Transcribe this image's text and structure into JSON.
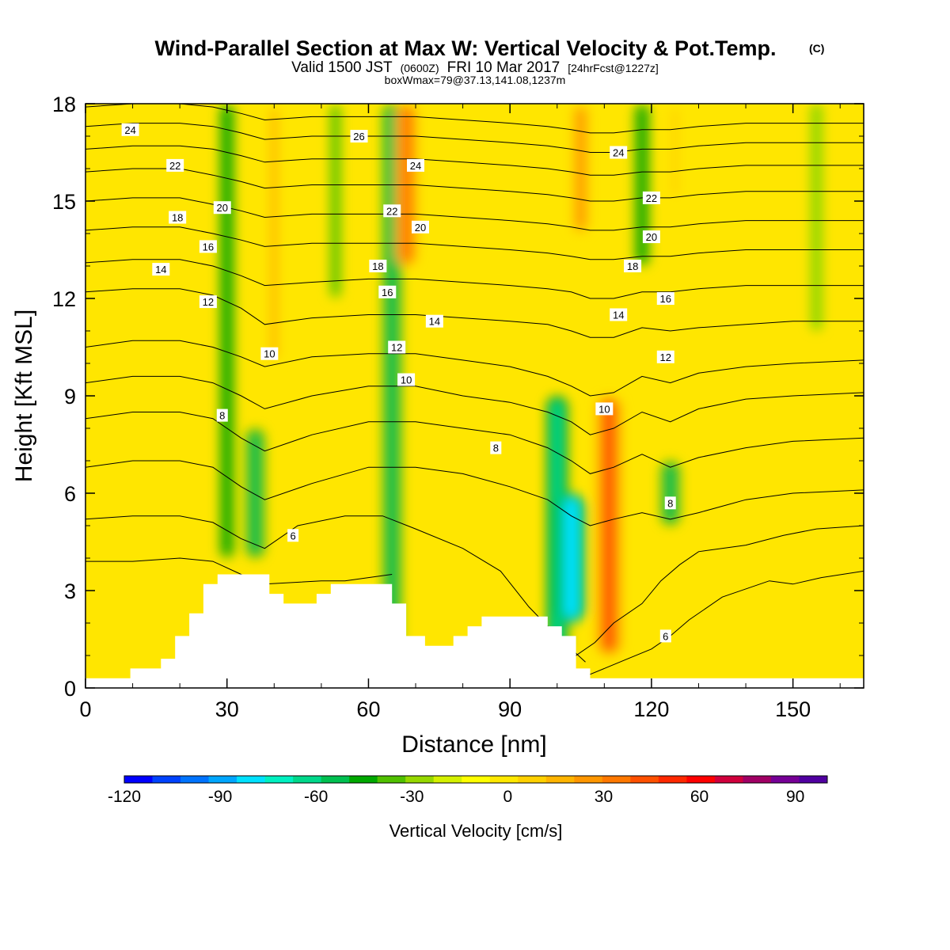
{
  "title": {
    "main": "Wind-Parallel Section at Max W: Vertical Velocity & Pot.Temp.",
    "main_suffix": "(C)",
    "valid_prefix": "Valid 1500 JST",
    "valid_utc": "(0600Z)",
    "valid_date": "FRI 10 Mar 2017",
    "forecast": "[24hrFcst@1227z]",
    "box_info": "boxWmax=79@37.13,141.08,1237m"
  },
  "chart_data": {
    "type": "heatmap",
    "xlabel": "Distance [nm]",
    "ylabel": "Height [Kft MSL]",
    "xlim": [
      0,
      165
    ],
    "ylim": [
      0,
      18
    ],
    "x_ticks": [
      0,
      30,
      60,
      90,
      120,
      150
    ],
    "y_ticks": [
      0,
      3,
      6,
      9,
      12,
      15,
      18
    ],
    "colorbar": {
      "title": "Vertical Velocity [cm/s]",
      "range": [
        -120,
        100
      ],
      "step": 10,
      "tick_values": [
        -120,
        -90,
        -60,
        -30,
        0,
        30,
        60,
        90
      ],
      "colors": [
        "#0000ff",
        "#0042ff",
        "#0073ff",
        "#00a6ff",
        "#00e1ff",
        "#00f0c0",
        "#00d88a",
        "#00c050",
        "#00a800",
        "#50c000",
        "#96d800",
        "#d4f000",
        "#ffff00",
        "#ffe800",
        "#ffd000",
        "#ffb400",
        "#ff9600",
        "#ff7800",
        "#ff5000",
        "#ff2800",
        "#ff0000",
        "#d0003c",
        "#a00064",
        "#760096",
        "#5000a0"
      ]
    },
    "velocity_features": [
      {
        "kind": "downdraft",
        "x": 30,
        "y_bottom": 4,
        "y_top": 18,
        "value": -40
      },
      {
        "kind": "downdraft",
        "x": 36,
        "y_bottom": 4,
        "y_top": 8,
        "value": -50
      },
      {
        "kind": "updraft",
        "x": 40,
        "y_bottom": 10,
        "y_top": 18,
        "value": 35
      },
      {
        "kind": "downdraft",
        "x": 53,
        "y_bottom": 12,
        "y_top": 18,
        "value": -30
      },
      {
        "kind": "downdraft",
        "x": 65,
        "y_bottom": 1,
        "y_top": 18,
        "value": -50
      },
      {
        "kind": "updraft",
        "x": 68,
        "y_bottom": 13,
        "y_top": 18,
        "value": 55
      },
      {
        "kind": "downdraft",
        "x": 100,
        "y_bottom": 1,
        "y_top": 9,
        "value": -55
      },
      {
        "kind": "downdraft",
        "x": 103,
        "y_bottom": 2,
        "y_top": 6,
        "value": -75
      },
      {
        "kind": "updraft",
        "x": 105,
        "y_bottom": 14,
        "y_top": 18,
        "value": 45
      },
      {
        "kind": "updraft",
        "x": 111,
        "y_bottom": 1,
        "y_top": 9,
        "value": 65
      },
      {
        "kind": "downdraft",
        "x": 118,
        "y_bottom": 13,
        "y_top": 18,
        "value": -40
      },
      {
        "kind": "downdraft",
        "x": 124,
        "y_bottom": 5,
        "y_top": 7,
        "value": -50
      },
      {
        "kind": "updraft",
        "x": 125,
        "y_bottom": 15,
        "y_top": 18,
        "value": 25
      },
      {
        "kind": "downdraft",
        "x": 155,
        "y_bottom": 11,
        "y_top": 18,
        "value": -20
      }
    ],
    "terrain": {
      "x": [
        0,
        9.5,
        9.5,
        16,
        16,
        19,
        19,
        22,
        22,
        25,
        25,
        28,
        28,
        39,
        39,
        42,
        42,
        49,
        49,
        52,
        52,
        65,
        65,
        68,
        68,
        72,
        72,
        78,
        78,
        81,
        81,
        84,
        84,
        98,
        98,
        101,
        101,
        104,
        104,
        107,
        107,
        165
      ],
      "y": [
        0.3,
        0.3,
        0.6,
        0.6,
        0.9,
        0.9,
        1.6,
        1.6,
        2.3,
        2.3,
        3.2,
        3.2,
        3.5,
        3.5,
        2.9,
        2.9,
        2.6,
        2.6,
        2.9,
        2.9,
        3.2,
        3.2,
        2.6,
        2.6,
        1.6,
        1.6,
        1.3,
        1.3,
        1.6,
        1.6,
        1.9,
        1.9,
        2.2,
        2.2,
        1.9,
        1.9,
        1.6,
        1.6,
        0.6,
        0.6,
        0.3,
        0.3
      ]
    },
    "theta_contours": [
      {
        "level": 5,
        "x": [
          0,
          10,
          20,
          27,
          33,
          38,
          50,
          55,
          65
        ],
        "y": [
          3.9,
          3.9,
          4.0,
          3.9,
          3.5,
          3.2,
          3.3,
          3.3,
          3.5
        ]
      },
      {
        "level": 5,
        "x": [
          98,
          102,
          108,
          112,
          118,
          122,
          126,
          130,
          140,
          148,
          155,
          165
        ],
        "y": [
          0.5,
          0.8,
          1.4,
          2.0,
          2.6,
          3.3,
          3.8,
          4.2,
          4.4,
          4.7,
          4.9,
          5.0
        ]
      },
      {
        "level": 6,
        "x": [
          0,
          10,
          20,
          27,
          33,
          38,
          45,
          55,
          63,
          70,
          80,
          88,
          94,
          100,
          106
        ],
        "y": [
          5.2,
          5.3,
          5.3,
          5.1,
          4.6,
          4.3,
          5.0,
          5.3,
          5.3,
          4.9,
          4.3,
          3.6,
          2.5,
          1.6,
          0.8
        ]
      },
      {
        "level": 6,
        "x": [
          105,
          110,
          115,
          120,
          124,
          128,
          135,
          145,
          150,
          156,
          165
        ],
        "y": [
          0.3,
          0.6,
          0.9,
          1.2,
          1.6,
          2.1,
          2.8,
          3.3,
          3.2,
          3.4,
          3.6
        ]
      },
      {
        "level": 7,
        "x": [
          0,
          10,
          20,
          27,
          33,
          38,
          48,
          60,
          70,
          80,
          90,
          98,
          103,
          107,
          112,
          118,
          124,
          130,
          140,
          150,
          165
        ],
        "y": [
          6.8,
          7.0,
          7.0,
          6.8,
          6.2,
          5.8,
          6.3,
          6.8,
          6.8,
          6.6,
          6.2,
          5.8,
          5.3,
          5.0,
          5.2,
          5.4,
          5.2,
          5.4,
          5.8,
          6.0,
          6.1
        ]
      },
      {
        "level": 8,
        "x": [
          0,
          10,
          20,
          27,
          33,
          38,
          48,
          60,
          70,
          80,
          90,
          98,
          103,
          107,
          112,
          118,
          124,
          130,
          140,
          150,
          165
        ],
        "y": [
          8.3,
          8.5,
          8.5,
          8.3,
          7.7,
          7.3,
          7.8,
          8.2,
          8.2,
          8.0,
          7.8,
          7.4,
          7.0,
          6.6,
          6.8,
          7.2,
          6.8,
          7.1,
          7.4,
          7.6,
          7.7
        ]
      },
      {
        "level": 9,
        "x": [
          0,
          10,
          20,
          27,
          33,
          38,
          48,
          60,
          70,
          80,
          90,
          98,
          103,
          107,
          112,
          118,
          124,
          130,
          140,
          150,
          165
        ],
        "y": [
          9.4,
          9.6,
          9.6,
          9.4,
          9.0,
          8.6,
          9.0,
          9.3,
          9.3,
          9.0,
          8.8,
          8.5,
          8.2,
          7.8,
          8.0,
          8.5,
          8.2,
          8.6,
          8.9,
          9.0,
          9.1
        ]
      },
      {
        "level": 10,
        "x": [
          0,
          10,
          20,
          27,
          33,
          38,
          48,
          60,
          70,
          80,
          90,
          98,
          103,
          107,
          112,
          118,
          124,
          130,
          140,
          150,
          165
        ],
        "y": [
          10.5,
          10.7,
          10.7,
          10.5,
          10.2,
          9.9,
          10.2,
          10.3,
          10.3,
          10.1,
          9.9,
          9.6,
          9.3,
          9.0,
          9.1,
          9.6,
          9.4,
          9.7,
          9.9,
          10.0,
          10.1
        ]
      },
      {
        "level": 12,
        "x": [
          0,
          10,
          20,
          27,
          33,
          38,
          48,
          60,
          70,
          80,
          90,
          98,
          103,
          107,
          112,
          118,
          124,
          130,
          140,
          150,
          165
        ],
        "y": [
          12.2,
          12.3,
          12.3,
          12.1,
          11.7,
          11.2,
          11.4,
          11.5,
          11.5,
          11.4,
          11.3,
          11.2,
          11.0,
          10.8,
          10.8,
          11.1,
          11.0,
          11.1,
          11.2,
          11.3,
          11.3
        ]
      },
      {
        "level": 14,
        "x": [
          0,
          10,
          20,
          27,
          33,
          38,
          48,
          60,
          70,
          80,
          90,
          98,
          103,
          107,
          112,
          118,
          124,
          130,
          140,
          150,
          165
        ],
        "y": [
          13.1,
          13.2,
          13.2,
          13.0,
          12.7,
          12.4,
          12.5,
          12.6,
          12.6,
          12.5,
          12.4,
          12.3,
          12.2,
          12.0,
          12.0,
          12.2,
          12.2,
          12.3,
          12.4,
          12.4,
          12.4
        ]
      },
      {
        "level": 16,
        "x": [
          0,
          10,
          20,
          27,
          33,
          38,
          48,
          60,
          70,
          80,
          90,
          98,
          103,
          107,
          112,
          118,
          124,
          130,
          140,
          150,
          165
        ],
        "y": [
          14.1,
          14.2,
          14.2,
          14.0,
          13.8,
          13.6,
          13.7,
          13.7,
          13.7,
          13.6,
          13.5,
          13.4,
          13.3,
          13.2,
          13.2,
          13.3,
          13.3,
          13.4,
          13.5,
          13.5,
          13.5
        ]
      },
      {
        "level": 18,
        "x": [
          0,
          10,
          20,
          27,
          33,
          38,
          48,
          60,
          70,
          80,
          90,
          98,
          103,
          107,
          112,
          118,
          124,
          130,
          140,
          150,
          165
        ],
        "y": [
          15.0,
          15.1,
          15.1,
          14.9,
          14.7,
          14.5,
          14.6,
          14.6,
          14.6,
          14.5,
          14.4,
          14.3,
          14.2,
          14.1,
          14.1,
          14.2,
          14.2,
          14.3,
          14.4,
          14.4,
          14.4
        ]
      },
      {
        "level": 20,
        "x": [
          0,
          10,
          20,
          27,
          33,
          38,
          48,
          60,
          70,
          80,
          90,
          98,
          103,
          107,
          112,
          118,
          124,
          130,
          140,
          150,
          165
        ],
        "y": [
          15.9,
          16.0,
          16.0,
          15.8,
          15.6,
          15.4,
          15.5,
          15.5,
          15.5,
          15.4,
          15.3,
          15.2,
          15.1,
          15.0,
          15.0,
          15.1,
          15.1,
          15.2,
          15.3,
          15.3,
          15.3
        ]
      },
      {
        "level": 22,
        "x": [
          0,
          10,
          20,
          27,
          33,
          38,
          48,
          60,
          70,
          80,
          90,
          98,
          103,
          107,
          112,
          118,
          124,
          130,
          140,
          150,
          165
        ],
        "y": [
          16.6,
          16.7,
          16.7,
          16.6,
          16.4,
          16.2,
          16.3,
          16.3,
          16.3,
          16.2,
          16.1,
          16.0,
          15.9,
          15.8,
          15.8,
          15.9,
          15.9,
          16.0,
          16.1,
          16.1,
          16.1
        ]
      },
      {
        "level": 24,
        "x": [
          0,
          10,
          20,
          27,
          33,
          38,
          48,
          60,
          70,
          80,
          90,
          98,
          103,
          107,
          112,
          118,
          124,
          130,
          140,
          150,
          165
        ],
        "y": [
          17.3,
          17.4,
          17.4,
          17.3,
          17.1,
          16.9,
          17.0,
          17.0,
          17.0,
          16.9,
          16.8,
          16.7,
          16.6,
          16.5,
          16.5,
          16.6,
          16.6,
          16.7,
          16.8,
          16.8,
          16.8
        ]
      },
      {
        "level": 26,
        "x": [
          0,
          10,
          20,
          27,
          33,
          38,
          48,
          60,
          70,
          80,
          90,
          98,
          103,
          107,
          112,
          118,
          124,
          130,
          140,
          150,
          165
        ],
        "y": [
          17.9,
          18.0,
          18.0,
          17.9,
          17.7,
          17.5,
          17.6,
          17.6,
          17.6,
          17.5,
          17.4,
          17.3,
          17.2,
          17.1,
          17.1,
          17.2,
          17.2,
          17.3,
          17.4,
          17.4,
          17.4
        ]
      }
    ],
    "contour_labels": [
      {
        "text": "24",
        "x": 9.5,
        "y": 17.2
      },
      {
        "text": "26",
        "x": 58,
        "y": 17.0
      },
      {
        "text": "24",
        "x": 70,
        "y": 16.1
      },
      {
        "text": "24",
        "x": 113,
        "y": 16.5
      },
      {
        "text": "22",
        "x": 19,
        "y": 16.1
      },
      {
        "text": "22",
        "x": 120,
        "y": 15.1
      },
      {
        "text": "22",
        "x": 65,
        "y": 14.7
      },
      {
        "text": "20",
        "x": 29,
        "y": 14.8
      },
      {
        "text": "20",
        "x": 71,
        "y": 14.2
      },
      {
        "text": "20",
        "x": 120,
        "y": 13.9
      },
      {
        "text": "18",
        "x": 19.5,
        "y": 14.5
      },
      {
        "text": "18",
        "x": 62,
        "y": 13.0
      },
      {
        "text": "18",
        "x": 116,
        "y": 13.0
      },
      {
        "text": "16",
        "x": 26,
        "y": 13.6
      },
      {
        "text": "16",
        "x": 64,
        "y": 12.2
      },
      {
        "text": "16",
        "x": 123,
        "y": 12.0
      },
      {
        "text": "14",
        "x": 16,
        "y": 12.9
      },
      {
        "text": "14",
        "x": 74,
        "y": 11.3
      },
      {
        "text": "14",
        "x": 113,
        "y": 11.5
      },
      {
        "text": "12",
        "x": 26,
        "y": 11.9
      },
      {
        "text": "12",
        "x": 66,
        "y": 10.5
      },
      {
        "text": "12",
        "x": 123,
        "y": 10.2
      },
      {
        "text": "10",
        "x": 39,
        "y": 10.3
      },
      {
        "text": "10",
        "x": 68,
        "y": 9.5
      },
      {
        "text": "10",
        "x": 110,
        "y": 8.6
      },
      {
        "text": "8",
        "x": 29,
        "y": 8.4
      },
      {
        "text": "8",
        "x": 87,
        "y": 7.4
      },
      {
        "text": "8",
        "x": 124,
        "y": 5.7
      },
      {
        "text": "6",
        "x": 44,
        "y": 4.7
      },
      {
        "text": "6",
        "x": 123,
        "y": 1.6
      }
    ]
  }
}
